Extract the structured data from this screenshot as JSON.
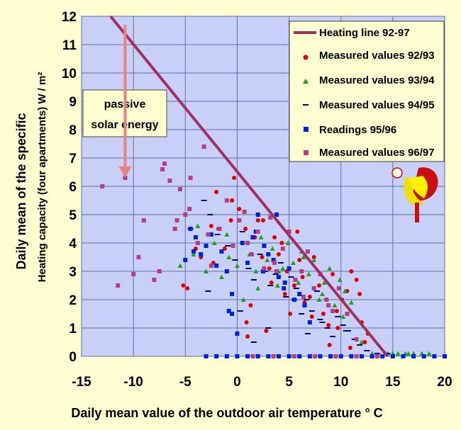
{
  "chart_data": {
    "type": "scatter",
    "xlabel": "Daily mean value of the outdoor air temperature ° C",
    "ylabel_line1": "Daily mean of the specific",
    "ylabel_line2": "Heating capacity (four apartments) W / m²",
    "xlim": [
      -15,
      20
    ],
    "ylim": [
      0,
      12
    ],
    "x_ticks": [
      -15,
      -10,
      -5,
      0,
      5,
      10,
      15,
      20
    ],
    "y_ticks": [
      0,
      1,
      2,
      3,
      4,
      5,
      6,
      7,
      8,
      9,
      10,
      11,
      12
    ],
    "grid": true,
    "legend_position": "top-right",
    "heating_line": {
      "name": "Heating line 92-97",
      "x": [
        -12.2,
        14.5
      ],
      "y": [
        12,
        0
      ],
      "color": "#a03060"
    },
    "series": [
      {
        "name": "Measured values   92/93",
        "marker": "circle",
        "color": "#e00000",
        "x": [
          -5.2,
          -4.8,
          -3.5,
          -2.5,
          -2.0,
          -1.8,
          -1.2,
          -0.5,
          -0.3,
          0.2,
          0.8,
          1.3,
          1.7,
          2.0,
          2.4,
          2.8,
          3.1,
          3.6,
          4.0,
          4.3,
          4.8,
          5.1,
          5.5,
          6.0,
          6.5,
          7.0,
          7.4,
          7.9,
          8.3,
          8.8,
          9.2,
          9.7,
          10.1,
          10.6,
          11.0,
          11.5,
          12.0,
          12.6,
          -0.6,
          0.9,
          2.5,
          6.3,
          8.9,
          11.8,
          -4.0,
          1.0,
          3.3,
          5.8,
          9.6,
          12.3,
          -2.3,
          4.6,
          7.2,
          10.9
        ],
        "y": [
          2.5,
          2.4,
          3.5,
          4.6,
          5.8,
          4.5,
          3.8,
          5.5,
          6.3,
          5.2,
          4.5,
          1.8,
          4.2,
          4.8,
          3.5,
          0.9,
          3.1,
          4.2,
          3.6,
          4.0,
          3.0,
          1.5,
          2.5,
          3.4,
          1.9,
          2.1,
          3.5,
          2.5,
          1.5,
          1.1,
          2.9,
          1.0,
          2.0,
          2.3,
          3.0,
          2.7,
          1.2,
          0.8,
          4.8,
          1.2,
          4.8,
          2.8,
          0.4,
          2.2,
          3.8,
          0.7,
          2.6,
          4.4,
          1.6,
          0.5,
          3.3,
          2.2,
          1.4,
          0.3
        ]
      },
      {
        "name": "Measured values   93/94",
        "marker": "triangle",
        "color": "#20a020",
        "x": [
          -5.5,
          -4.2,
          -3.0,
          -2.2,
          -1.5,
          -0.8,
          0.0,
          0.6,
          1.2,
          1.8,
          2.3,
          2.9,
          3.4,
          3.9,
          4.4,
          4.9,
          5.4,
          5.9,
          6.4,
          6.9,
          7.4,
          7.9,
          8.4,
          8.9,
          9.4,
          9.9,
          10.4,
          11.0,
          12.0,
          13.0,
          14.5,
          15.5,
          16.2,
          17.0,
          17.8,
          -3.8,
          -1.0,
          2.0,
          4.0,
          6.2,
          8.2,
          10.2,
          15.0,
          16.5,
          18.5
        ],
        "y": [
          3.2,
          3.6,
          3.0,
          4.0,
          2.8,
          3.5,
          3.2,
          2.0,
          3.6,
          3.0,
          4.2,
          3.4,
          3.8,
          2.5,
          3.1,
          4.0,
          3.3,
          2.6,
          3.5,
          2.9,
          3.4,
          2.0,
          2.6,
          3.1,
          1.8,
          2.7,
          2.3,
          1.9,
          0.5,
          0.1,
          0.1,
          0.1,
          0.1,
          0.1,
          0.1,
          4.6,
          4.3,
          2.4,
          3.0,
          3.7,
          2.2,
          1.4,
          0.1,
          0.1,
          0.1
        ]
      },
      {
        "name": "Measured values   94/95",
        "marker": "dash",
        "color": "#000080",
        "x": [
          -4.5,
          -3.2,
          -2.6,
          -1.9,
          -0.9,
          -0.2,
          0.5,
          1.1,
          1.6,
          2.2,
          2.7,
          3.2,
          3.7,
          4.2,
          4.7,
          5.2,
          5.7,
          6.2,
          6.7,
          7.2,
          7.7,
          8.2,
          8.7,
          9.2,
          9.7,
          10.2,
          10.7,
          11.3,
          11.8,
          12.5,
          13.5,
          14.5,
          -2.8,
          0.3,
          3.0,
          5.5,
          8.0,
          10.5,
          1.6,
          6.8
        ],
        "y": [
          4.5,
          5.5,
          5.0,
          4.3,
          3.9,
          3.4,
          4.4,
          3.1,
          2.7,
          3.6,
          3.0,
          2.5,
          2.9,
          3.3,
          2.1,
          2.8,
          2.4,
          1.5,
          2.0,
          1.6,
          2.3,
          1.2,
          1.0,
          0.7,
          1.4,
          1.1,
          0.9,
          0.6,
          0.4,
          0.2,
          0.1,
          0.1,
          2.3,
          1.6,
          1.0,
          2.0,
          1.3,
          0.9,
          0.5,
          0.8
        ]
      },
      {
        "name": "Readings 95/96",
        "marker": "square",
        "color": "#0020e0",
        "x": [
          -5.0,
          -4.5,
          -4.0,
          -3.5,
          -3.0,
          -2.5,
          -2.0,
          -1.5,
          -1.0,
          -0.5,
          0.0,
          0.5,
          1.0,
          1.5,
          2.0,
          2.5,
          3.0,
          3.5,
          4.0,
          4.5,
          5.0,
          5.5,
          6.0,
          6.5,
          7.0,
          -0.8,
          1.8,
          3.8,
          -3.0,
          -2.0,
          -1.0,
          0.0,
          1.0,
          2.0,
          3.0,
          4.0,
          5.0,
          6.0,
          7.0,
          8.0,
          9.0,
          10.0,
          11.0,
          12.0,
          13.0,
          14.0,
          15.0,
          16.0,
          17.0,
          18.0,
          19.0,
          20.0,
          -4.2,
          -0.5,
          2.6,
          4.6
        ],
        "y": [
          3.4,
          4.5,
          4.2,
          3.6,
          3.9,
          4.3,
          3.2,
          3.7,
          3.0,
          1.5,
          0.8,
          4.0,
          3.3,
          4.2,
          5.0,
          3.0,
          3.6,
          3.4,
          2.8,
          2.4,
          3.1,
          2.0,
          2.2,
          1.8,
          1.2,
          1.6,
          4.4,
          5.0,
          0.0,
          0.0,
          0.0,
          0.0,
          0.0,
          0.0,
          0.0,
          0.0,
          0.0,
          0.0,
          0.0,
          0.0,
          0.0,
          0.0,
          0.0,
          0.0,
          0.0,
          0.0,
          0.0,
          0.0,
          0.0,
          0.0,
          0.0,
          0.0,
          3.7,
          2.2,
          3.9,
          2.6
        ]
      },
      {
        "name": "Measured values   96/97",
        "marker": "square",
        "color": "#b04080",
        "x": [
          -13.0,
          -11.5,
          -10.8,
          -10.0,
          -9.5,
          -9.0,
          -8.0,
          -7.5,
          -7.0,
          -6.5,
          -6.0,
          -5.5,
          -5.0,
          -4.5,
          -3.8,
          -3.2,
          -2.5,
          -1.7,
          -1.0,
          -0.4,
          0.2,
          0.7,
          1.4,
          2.0,
          2.6,
          3.2,
          3.8,
          4.4,
          5.0,
          5.6,
          6.2,
          6.8,
          7.4,
          8.0,
          8.6,
          9.2,
          9.8,
          10.6,
          11.5,
          -7.2,
          -5.8,
          -4.6,
          -2.8,
          1.0,
          3.6,
          6.4,
          8.8,
          1.5,
          3.5,
          5.5,
          7.5,
          9.5,
          11.5,
          13.5
        ],
        "y": [
          6.0,
          2.5,
          6.3,
          2.9,
          3.5,
          4.8,
          2.7,
          3.0,
          6.8,
          6.2,
          4.5,
          5.9,
          5.0,
          6.3,
          4.0,
          7.4,
          3.2,
          4.5,
          5.5,
          3.9,
          4.8,
          5.1,
          3.6,
          4.4,
          3.1,
          4.9,
          3.0,
          3.8,
          4.4,
          2.7,
          3.0,
          3.7,
          2.4,
          2.9,
          2.0,
          1.6,
          2.4,
          1.5,
          0.6,
          6.6,
          4.8,
          5.2,
          4.3,
          4.0,
          3.3,
          2.1,
          1.8,
          0.0,
          0.0,
          0.0,
          0.0,
          0.0,
          0.0,
          0.0
        ]
      }
    ],
    "annotation": {
      "line1": "passive",
      "line2": "solar energy",
      "arrow_x": -10.8,
      "arrow_from_y": 11.7,
      "arrow_to_y": 6.3
    }
  }
}
